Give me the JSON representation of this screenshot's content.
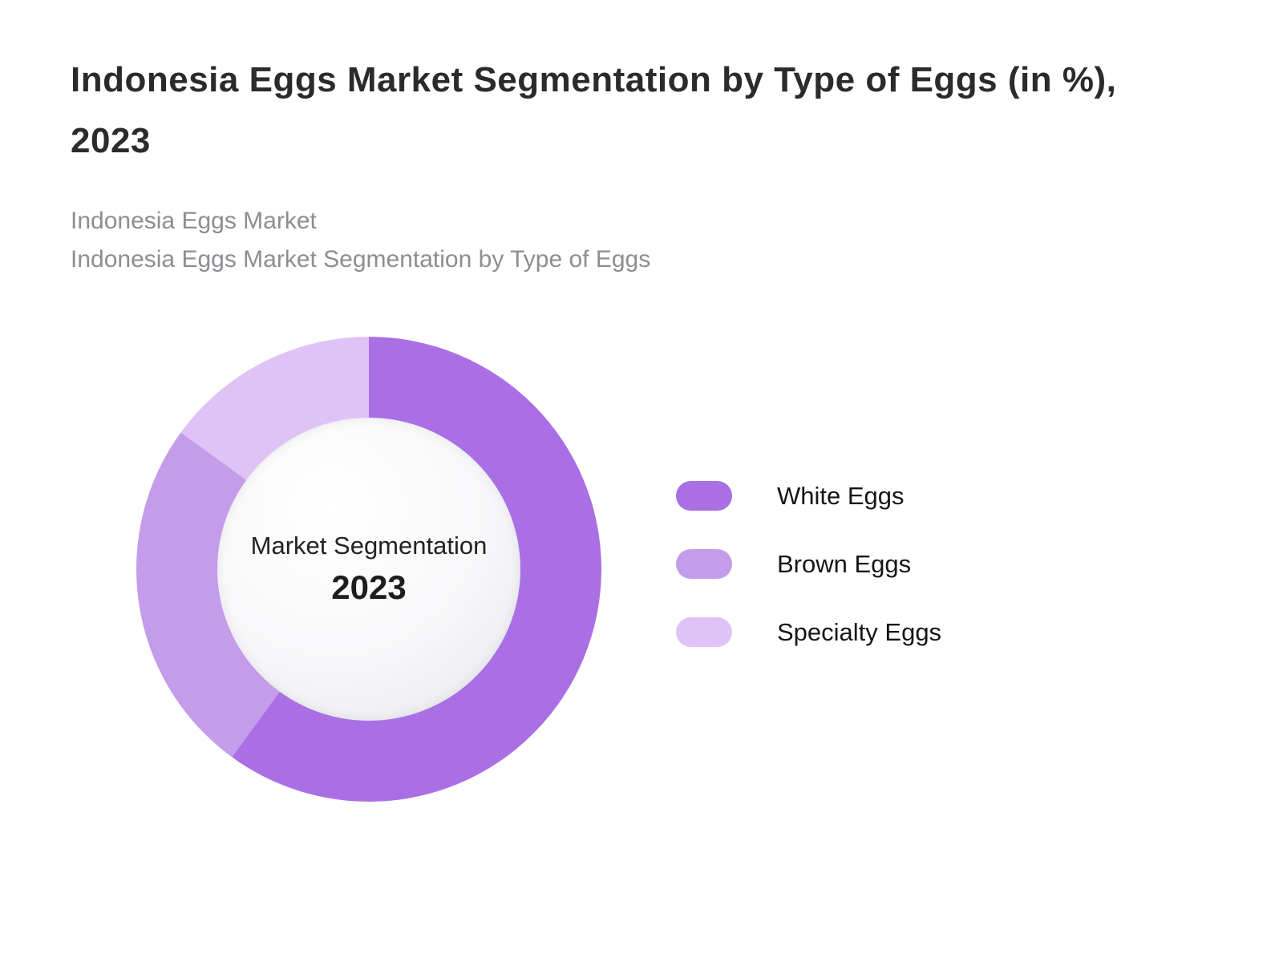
{
  "page": {
    "title": "Indonesia Eggs Market Segmentation by Type of Eggs (in %), 2023",
    "subtitle_line1": "Indonesia Eggs Market",
    "subtitle_line2": "Indonesia Eggs Market Segmentation by Type of Eggs"
  },
  "chart_data": {
    "type": "pie",
    "donut": true,
    "title": "Indonesia Eggs Market Segmentation by Type of Eggs (in %), 2023",
    "center_label": "Market Segmentation",
    "center_year": "2023",
    "categories": [
      "White Eggs",
      "Brown Eggs",
      "Specialty Eggs"
    ],
    "values": [
      60,
      25,
      15
    ],
    "colors": [
      "#aa6fe5",
      "#c49cea",
      "#dfc3f6"
    ],
    "start_angle_deg": 0,
    "direction": "clockwise",
    "legend_position": "right",
    "background": "#ffffff"
  }
}
